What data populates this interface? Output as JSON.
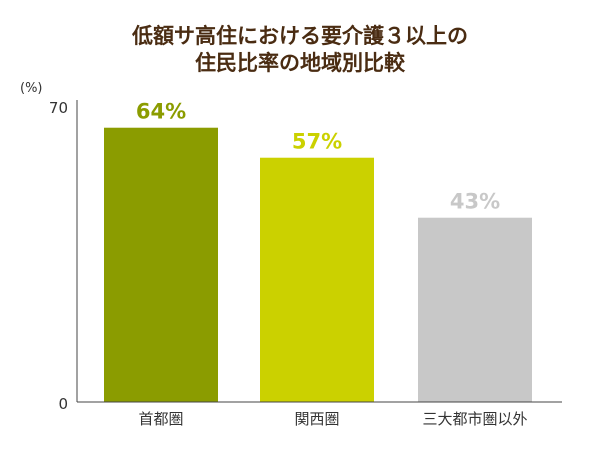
{
  "chart_data": {
    "type": "bar",
    "title_lines": [
      "低額サ高住における要介護３以上の",
      "住民比率の地域別比較"
    ],
    "unit_label": "(%)",
    "categories": [
      "首都圏",
      "関西圏",
      "三大都市圏以外"
    ],
    "values": [
      64,
      57,
      43
    ],
    "value_labels": [
      "64%",
      "57%",
      "43%"
    ],
    "colors": [
      "#8b9c00",
      "#cbd100",
      "#c8c8c8"
    ],
    "ylim": [
      0,
      70
    ],
    "y_ticks": [
      "0",
      "70"
    ],
    "grid": false,
    "legend": "none"
  }
}
